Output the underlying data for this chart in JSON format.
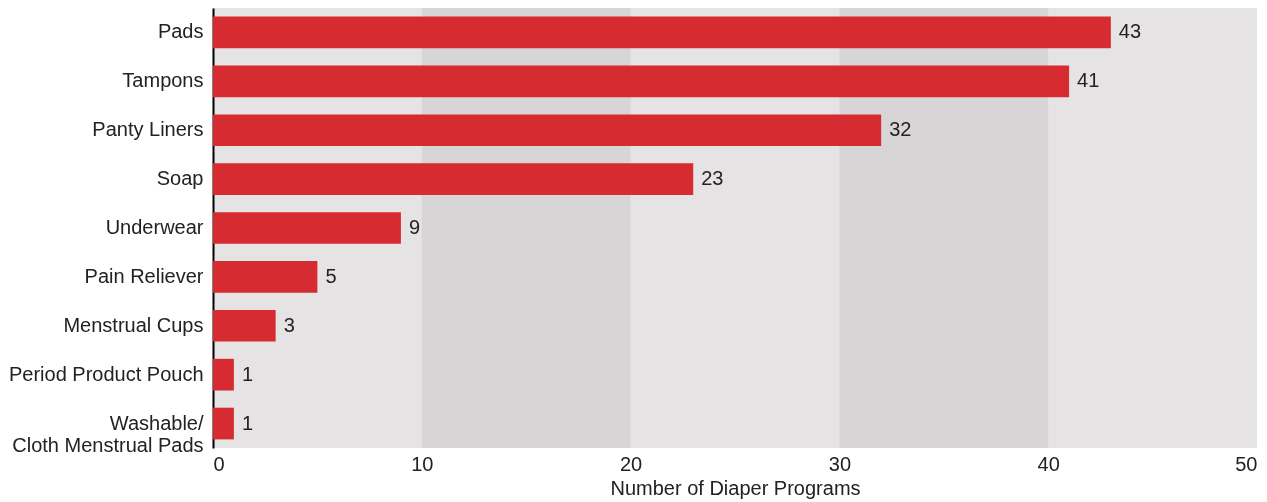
{
  "chart_data": {
    "type": "bar",
    "orientation": "horizontal",
    "xlabel": "Number of Diaper Programs",
    "categories": [
      "Pads",
      "Tampons",
      "Panty Liners",
      "Soap",
      "Underwear",
      "Pain Reliever",
      "Menstrual Cups",
      "Period Product Pouch",
      "Washable/\nCloth Menstrual Pads"
    ],
    "values": [
      43,
      41,
      32,
      23,
      9,
      5,
      3,
      1,
      1
    ],
    "color": "#d62b30",
    "data_labels": true,
    "xlim": [
      0,
      50
    ],
    "xticks": [
      0,
      10,
      20,
      30,
      40,
      50
    ],
    "grid": false,
    "bands": [
      {
        "axis": "x",
        "from": 10,
        "to": 20,
        "color": "#d8d5d7"
      },
      {
        "axis": "x",
        "from": 30,
        "to": 40,
        "color": "#d8d5d7"
      }
    ]
  }
}
